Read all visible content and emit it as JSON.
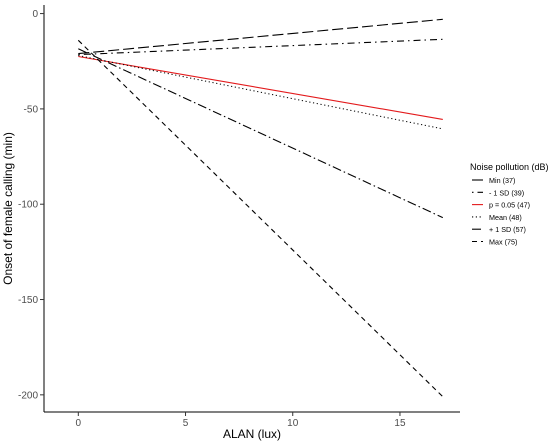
{
  "chart_data": {
    "type": "line",
    "xlabel": "ALAN (lux)",
    "ylabel": "Onset of female calling (min)",
    "xlim": [
      -1.6,
      17.8
    ],
    "ylim": [
      -209,
      4.5
    ],
    "xticks": [
      0,
      5,
      10,
      15
    ],
    "yticks": [
      0,
      -50,
      -100,
      -150,
      -200
    ],
    "grid": false,
    "legend": {
      "title": "Noise pollution (dB)",
      "placement": "right"
    },
    "series": [
      {
        "name": "Min (37)",
        "x": [
          0,
          17
        ],
        "y": [
          -21.0,
          -3.0
        ],
        "color": "#000000",
        "dash": "long"
      },
      {
        "name": "- 1 SD (39)",
        "x": [
          0,
          17
        ],
        "y": [
          -21.5,
          -13.5
        ],
        "color": "#000000",
        "dash": "dotdash"
      },
      {
        "name": "p = 0.05 (47)",
        "x": [
          0,
          17
        ],
        "y": [
          -22.5,
          -55.5
        ],
        "color": "#e31a1c",
        "dash": "solid"
      },
      {
        "name": "Mean (48)",
        "x": [
          0,
          17
        ],
        "y": [
          -22.0,
          -60.5
        ],
        "color": "#000000",
        "dash": "dotted"
      },
      {
        "name": "+ 1 SD (57)",
        "x": [
          0,
          17
        ],
        "y": [
          -18.5,
          -107.0
        ],
        "color": "#000000",
        "dash": "longdash-dot"
      },
      {
        "name": "Max (75)",
        "x": [
          0,
          17
        ],
        "y": [
          -14.0,
          -201.0
        ],
        "color": "#000000",
        "dash": "dashed"
      }
    ]
  }
}
